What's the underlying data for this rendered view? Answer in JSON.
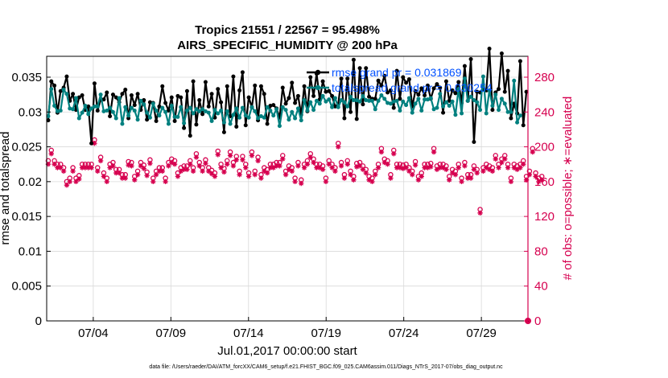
{
  "chart_data": {
    "type": "line",
    "title_line1": "Tropics 21551 / 22567 = 95.498%",
    "title_line2": "AIRS_SPECIFIC_HUMIDITY @ 200 hPa",
    "xlabel": "Jul.01,2017 00:00:00 start",
    "ylabel_left": "rmse and totalspread",
    "ylabel_right": "# of obs: o=possible; ∗=evaluated",
    "x_tick_labels": [
      "07/04",
      "07/09",
      "07/14",
      "07/19",
      "07/24",
      "07/29"
    ],
    "x_tick_days": [
      4,
      9,
      14,
      19,
      24,
      29
    ],
    "xlim_days": [
      1,
      32
    ],
    "ylim_left": [
      0,
      0.038
    ],
    "yticks_left": [
      "0",
      "0.005",
      "0.01",
      "0.015",
      "0.02",
      "0.025",
      "0.03",
      "0.035"
    ],
    "ylim_right": [
      0,
      304
    ],
    "yticks_right": [
      "0",
      "40",
      "80",
      "120",
      "160",
      "200",
      "240",
      "280"
    ],
    "legend": {
      "rmse_label": "rmse grand pr = 0.031869",
      "spread_label": "totalspread grand pr = 0.030254",
      "placement": "top-right"
    },
    "colors": {
      "rmse": "#000000",
      "spread": "#00807f",
      "obs": "#d6004f",
      "legend_text": "#0050ff"
    },
    "series": [
      {
        "name": "rmse",
        "values": [
          0.0288,
          0.0344,
          0.0338,
          0.0299,
          0.033,
          0.0335,
          0.0351,
          0.0316,
          0.0326,
          0.0303,
          0.0321,
          0.0324,
          0.0303,
          0.0308,
          0.0255,
          0.0341,
          0.0302,
          0.0318,
          0.0318,
          0.0328,
          0.0294,
          0.0325,
          0.0321,
          0.0314,
          0.0326,
          0.0332,
          0.0291,
          0.0324,
          0.031,
          0.0326,
          0.0303,
          0.0317,
          0.0289,
          0.0314,
          0.0313,
          0.0287,
          0.0308,
          0.0337,
          0.0313,
          0.0302,
          0.0321,
          0.0287,
          0.0323,
          0.0321,
          0.0277,
          0.033,
          0.0266,
          0.0344,
          0.0282,
          0.0317,
          0.0297,
          0.0343,
          0.0308,
          0.0326,
          0.0292,
          0.0333,
          0.0314,
          0.0271,
          0.0337,
          0.0294,
          0.0351,
          0.0279,
          0.0331,
          0.0357,
          0.0281,
          0.0321,
          0.0307,
          0.0338,
          0.0288,
          0.0337,
          0.0326,
          0.0283,
          0.0309,
          0.031,
          0.0305,
          0.0292,
          0.0335,
          0.0312,
          0.032,
          0.0342,
          0.0313,
          0.0323,
          0.0296,
          0.0337,
          0.0301,
          0.035,
          0.0323,
          0.0355,
          0.0318,
          0.0344,
          0.0329,
          0.033,
          0.0323,
          0.0308,
          0.0311,
          0.0348,
          0.0291,
          0.0348,
          0.03,
          0.0375,
          0.029,
          0.0363,
          0.0311,
          0.0363,
          0.0322,
          0.0319,
          0.0319,
          0.0345,
          0.0338,
          0.0352,
          0.0328,
          0.0331,
          0.0306,
          0.0359,
          0.0319,
          0.035,
          0.0342,
          0.0347,
          0.0308,
          0.033,
          0.0325,
          0.0334,
          0.0324,
          0.0338,
          0.0319,
          0.0334,
          0.034,
          0.0335,
          0.0299,
          0.0344,
          0.0316,
          0.0331,
          0.0327,
          0.0343,
          0.0313,
          0.0366,
          0.0316,
          0.0376,
          0.0257,
          0.0329,
          0.0328,
          0.0332,
          0.0331,
          0.0391,
          0.0303,
          0.0328,
          0.0333,
          0.0384,
          0.0329,
          0.0359,
          0.0291,
          0.0312,
          0.0298,
          0.0373,
          0.0281,
          0.0329
        ]
      },
      {
        "name": "totalspread",
        "values": [
          0.0294,
          0.0333,
          0.0309,
          0.0301,
          0.0302,
          0.0332,
          0.0326,
          0.0305,
          0.0304,
          0.032,
          0.0291,
          0.0299,
          0.0309,
          0.0297,
          0.0305,
          0.0308,
          0.0308,
          0.0325,
          0.0301,
          0.0302,
          0.0306,
          0.03,
          0.0291,
          0.032,
          0.0283,
          0.0307,
          0.0295,
          0.0306,
          0.0302,
          0.0289,
          0.0316,
          0.0311,
          0.0299,
          0.0292,
          0.0312,
          0.0302,
          0.0295,
          0.0306,
          0.03,
          0.0283,
          0.0309,
          0.0293,
          0.0293,
          0.0307,
          0.0284,
          0.0302,
          0.0306,
          0.0298,
          0.0304,
          0.0301,
          0.0304,
          0.0301,
          0.0299,
          0.0287,
          0.0303,
          0.0298,
          0.0302,
          0.0285,
          0.0301,
          0.0283,
          0.0296,
          0.0305,
          0.0292,
          0.0306,
          0.0295,
          0.0292,
          0.0307,
          0.0301,
          0.0291,
          0.0294,
          0.0292,
          0.0307,
          0.0302,
          0.0295,
          0.0304,
          0.028,
          0.0307,
          0.0303,
          0.0289,
          0.03,
          0.0291,
          0.0305,
          0.0288,
          0.0317,
          0.0302,
          0.0314,
          0.0303,
          0.0316,
          0.0312,
          0.0323,
          0.0315,
          0.0318,
          0.0307,
          0.032,
          0.0307,
          0.0317,
          0.0314,
          0.0308,
          0.0322,
          0.0317,
          0.0317,
          0.0315,
          0.0323,
          0.0317,
          0.0316,
          0.0316,
          0.0304,
          0.0316,
          0.0324,
          0.0319,
          0.0313,
          0.0312,
          0.0315,
          0.0316,
          0.0302,
          0.0315,
          0.031,
          0.032,
          0.0299,
          0.0312,
          0.0319,
          0.0302,
          0.0318,
          0.0318,
          0.032,
          0.0304,
          0.0306,
          0.0326,
          0.0308,
          0.0314,
          0.0309,
          0.0315,
          0.0296,
          0.0333,
          0.0298,
          0.0348,
          0.0316,
          0.0322,
          0.0317,
          0.0314,
          0.0303,
          0.0351,
          0.0298,
          0.0331,
          0.0309,
          0.0325,
          0.0303,
          0.0319,
          0.0312,
          0.03,
          0.03,
          0.0345,
          0.0285,
          0.0295
        ]
      },
      {
        "name": "obs_possible",
        "values": [
          184,
          196,
          184,
          180,
          180,
          176,
          160,
          164,
          176,
          164,
          167,
          180,
          180,
          180,
          180,
          208,
          176,
          188,
          170,
          164,
          180,
          182,
          174,
          174,
          168,
          168,
          183,
          182,
          166,
          172,
          182,
          179,
          171,
          185,
          164,
          172,
          176,
          176,
          164,
          182,
          186,
          184,
          170,
          176,
          178,
          178,
          184,
          176,
          192,
          182,
          176,
          185,
          176,
          173,
          170,
          195,
          180,
          175,
          184,
          194,
          182,
          189,
          172,
          189,
          180,
          170,
          194,
          172,
          188,
          168,
          176,
          174,
          180,
          180,
          182,
          182,
          190,
          172,
          178,
          176,
          164,
          182,
          162,
          180,
          184,
          192,
          186,
          180,
          180,
          178,
          164,
          184,
          180,
          176,
          204,
          182,
          168,
          184,
          172,
          166,
          181,
          182,
          178,
          174,
          166,
          164,
          172,
          180,
          198,
          186,
          184,
          168,
          196,
          180,
          180,
          179,
          180,
          176,
          172,
          183,
          166,
          170,
          180,
          180,
          181,
          198,
          178,
          180,
          180,
          178,
          166,
          174,
          172,
          180,
          164,
          182,
          168,
          168,
          178,
          174,
          128,
          176,
          180,
          178,
          176,
          190,
          180,
          186,
          190,
          180,
          164,
          180,
          178,
          180,
          184,
          166,
          172,
          198,
          170,
          164,
          166
        ]
      },
      {
        "name": "obs_evaluated",
        "values": [
          180,
          192,
          180,
          176,
          176,
          172,
          156,
          160,
          172,
          160,
          163,
          176,
          176,
          176,
          176,
          204,
          172,
          184,
          166,
          160,
          176,
          178,
          170,
          170,
          164,
          164,
          179,
          178,
          162,
          168,
          178,
          175,
          167,
          181,
          160,
          168,
          172,
          172,
          160,
          178,
          182,
          180,
          166,
          172,
          174,
          174,
          180,
          172,
          188,
          178,
          172,
          181,
          172,
          169,
          166,
          191,
          176,
          171,
          180,
          190,
          178,
          185,
          168,
          185,
          176,
          166,
          190,
          168,
          184,
          164,
          172,
          170,
          176,
          176,
          178,
          178,
          186,
          168,
          174,
          172,
          160,
          178,
          158,
          176,
          180,
          188,
          182,
          176,
          176,
          174,
          160,
          180,
          176,
          172,
          200,
          178,
          164,
          180,
          168,
          162,
          177,
          178,
          174,
          170,
          162,
          160,
          168,
          176,
          194,
          182,
          180,
          164,
          192,
          176,
          176,
          175,
          176,
          172,
          168,
          179,
          162,
          166,
          176,
          176,
          177,
          194,
          174,
          176,
          176,
          174,
          162,
          170,
          168,
          176,
          160,
          178,
          164,
          164,
          174,
          170,
          124,
          172,
          176,
          174,
          172,
          186,
          176,
          182,
          186,
          176,
          160,
          176,
          174,
          176,
          180,
          162,
          168,
          194,
          166,
          160,
          162
        ]
      }
    ]
  },
  "footer": "data file: /Users/raeder/DAI/ATM_forcXX/CAM6_setup/f.e21.FHIST_BGC.f09_025.CAM6assim.011/Diags_NTrS_2017-07/obs_diag_output.nc"
}
